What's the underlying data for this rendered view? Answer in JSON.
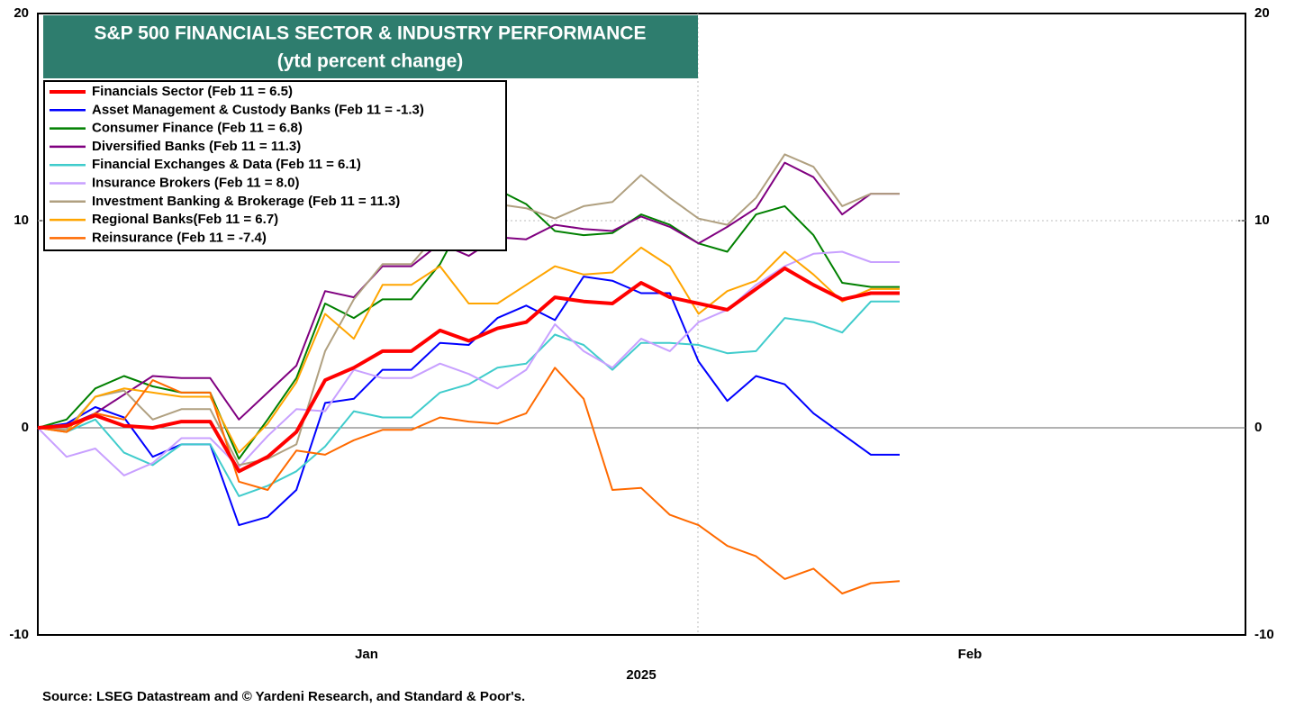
{
  "chart_data": {
    "type": "line",
    "title": "S&P 500 FINANCIALS SECTOR & INDUSTRY PERFORMANCE",
    "subtitle": "(ytd percent change)",
    "source": "Source: LSEG Datastream and © Yardeni Research, and Standard & Poor's.",
    "categories": [
      null,
      null,
      null,
      null,
      null,
      null,
      null,
      null,
      null,
      null,
      null,
      null,
      null,
      null,
      null,
      null,
      null,
      null,
      null,
      null,
      null,
      null,
      null,
      null,
      null,
      null,
      null,
      null,
      null,
      null,
      null
    ],
    "month_labels": [
      "Jan",
      "Feb"
    ],
    "year_label": "2025",
    "ylim": [
      -10,
      20
    ],
    "yticks": [
      -10,
      0,
      10,
      20
    ],
    "grid": true,
    "legend": "top-left",
    "series": [
      {
        "name": "Financials Sector (Feb 11 = 6.5)",
        "color": "#ff0000",
        "values": [
          0,
          0.1,
          0.6,
          0.1,
          0,
          0.3,
          0.3,
          -2.1,
          -1.4,
          -0.2,
          2.3,
          2.9,
          3.7,
          3.7,
          4.7,
          4.2,
          4.8,
          5.1,
          6.3,
          6.1,
          6.0,
          7.0,
          6.3,
          6.0,
          5.7,
          6.7,
          7.7,
          6.9,
          6.2,
          6.5,
          6.5
        ]
      },
      {
        "name": "Asset Management & Custody Banks (Feb 11 = -1.3)",
        "color": "#0000ff",
        "values": [
          0,
          0.2,
          1.0,
          0.5,
          -1.4,
          -0.8,
          -0.8,
          -4.7,
          -4.3,
          -3.0,
          1.2,
          1.4,
          2.8,
          2.8,
          4.1,
          4.0,
          5.3,
          5.9,
          5.2,
          7.3,
          7.1,
          6.5,
          6.5,
          3.2,
          1.3,
          2.5,
          2.1,
          0.7,
          -0.3,
          -1.3,
          -1.3
        ]
      },
      {
        "name": "Consumer Finance (Feb 11 = 6.8)",
        "color": "#008000",
        "values": [
          0,
          0.4,
          1.9,
          2.5,
          2.0,
          1.7,
          1.7,
          -1.5,
          0.4,
          2.4,
          6.0,
          5.3,
          6.2,
          6.2,
          7.9,
          10.5,
          11.5,
          10.8,
          9.5,
          9.3,
          9.4,
          10.3,
          9.8,
          8.9,
          8.5,
          10.3,
          10.7,
          9.3,
          7.0,
          6.8,
          6.8
        ]
      },
      {
        "name": "Diversified Banks (Feb 11 = 11.3)",
        "color": "#800080",
        "values": [
          0,
          0.1,
          0.7,
          1.6,
          2.5,
          2.4,
          2.4,
          0.4,
          1.7,
          3.0,
          6.6,
          6.3,
          7.8,
          7.8,
          8.9,
          8.3,
          9.2,
          9.1,
          9.8,
          9.6,
          9.5,
          10.2,
          9.7,
          8.9,
          9.7,
          10.6,
          12.8,
          12.1,
          10.3,
          11.3,
          11.3
        ]
      },
      {
        "name": "Financial Exchanges & Data (Feb 11 = 6.1)",
        "color": "#40cccc",
        "values": [
          0,
          -0.2,
          0.4,
          -1.2,
          -1.8,
          -0.8,
          -0.8,
          -3.3,
          -2.8,
          -2.1,
          -0.9,
          0.8,
          0.5,
          0.5,
          1.7,
          2.1,
          2.9,
          3.1,
          4.5,
          4.0,
          2.8,
          4.1,
          4.1,
          4.0,
          3.6,
          3.7,
          5.3,
          5.1,
          4.6,
          6.1,
          6.1
        ]
      },
      {
        "name": "Insurance Brokers (Feb 11 = 8.0)",
        "color": "#c8a0ff",
        "values": [
          0,
          -1.4,
          -1.0,
          -2.3,
          -1.7,
          -0.5,
          -0.5,
          -1.9,
          -0.4,
          0.9,
          0.8,
          2.8,
          2.4,
          2.4,
          3.1,
          2.6,
          1.9,
          2.8,
          5.0,
          3.7,
          2.9,
          4.3,
          3.7,
          5.1,
          5.7,
          6.9,
          7.8,
          8.4,
          8.5,
          8.0,
          8.0
        ]
      },
      {
        "name": "Investment Banking & Brokerage (Feb 11 = 11.3)",
        "color": "#b0a080",
        "values": [
          0,
          -0.1,
          1.5,
          1.8,
          0.4,
          0.9,
          0.9,
          -1.8,
          -1.5,
          -0.8,
          3.7,
          6.2,
          7.9,
          7.9,
          9.5,
          10.5,
          10.8,
          10.6,
          10.1,
          10.7,
          10.9,
          12.2,
          11.1,
          10.1,
          9.8,
          11.1,
          13.2,
          12.6,
          10.7,
          11.3,
          11.3
        ]
      },
      {
        "name": "Regional Banks(Feb 11 = 6.7)",
        "color": "#ffa500",
        "values": [
          0,
          -0.2,
          1.5,
          1.9,
          1.7,
          1.5,
          1.5,
          -1.2,
          0.2,
          2.2,
          5.5,
          4.3,
          6.9,
          6.9,
          7.8,
          6.0,
          6.0,
          6.9,
          7.8,
          7.4,
          7.5,
          8.7,
          7.8,
          5.5,
          6.6,
          7.1,
          8.5,
          7.4,
          6.1,
          6.7,
          6.7
        ]
      },
      {
        "name": "Reinsurance (Feb 11 = -7.4)",
        "color": "#ff6a00",
        "values": [
          0,
          -0.2,
          0.7,
          0.4,
          2.3,
          1.7,
          1.7,
          -2.6,
          -3.0,
          -1.1,
          -1.3,
          -0.6,
          -0.1,
          -0.1,
          0.5,
          0.3,
          0.2,
          0.7,
          2.9,
          1.4,
          -3.0,
          -2.9,
          -4.2,
          -4.7,
          -5.7,
          -6.2,
          -7.3,
          -6.8,
          -8.0,
          -7.5,
          -7.4
        ]
      }
    ]
  }
}
